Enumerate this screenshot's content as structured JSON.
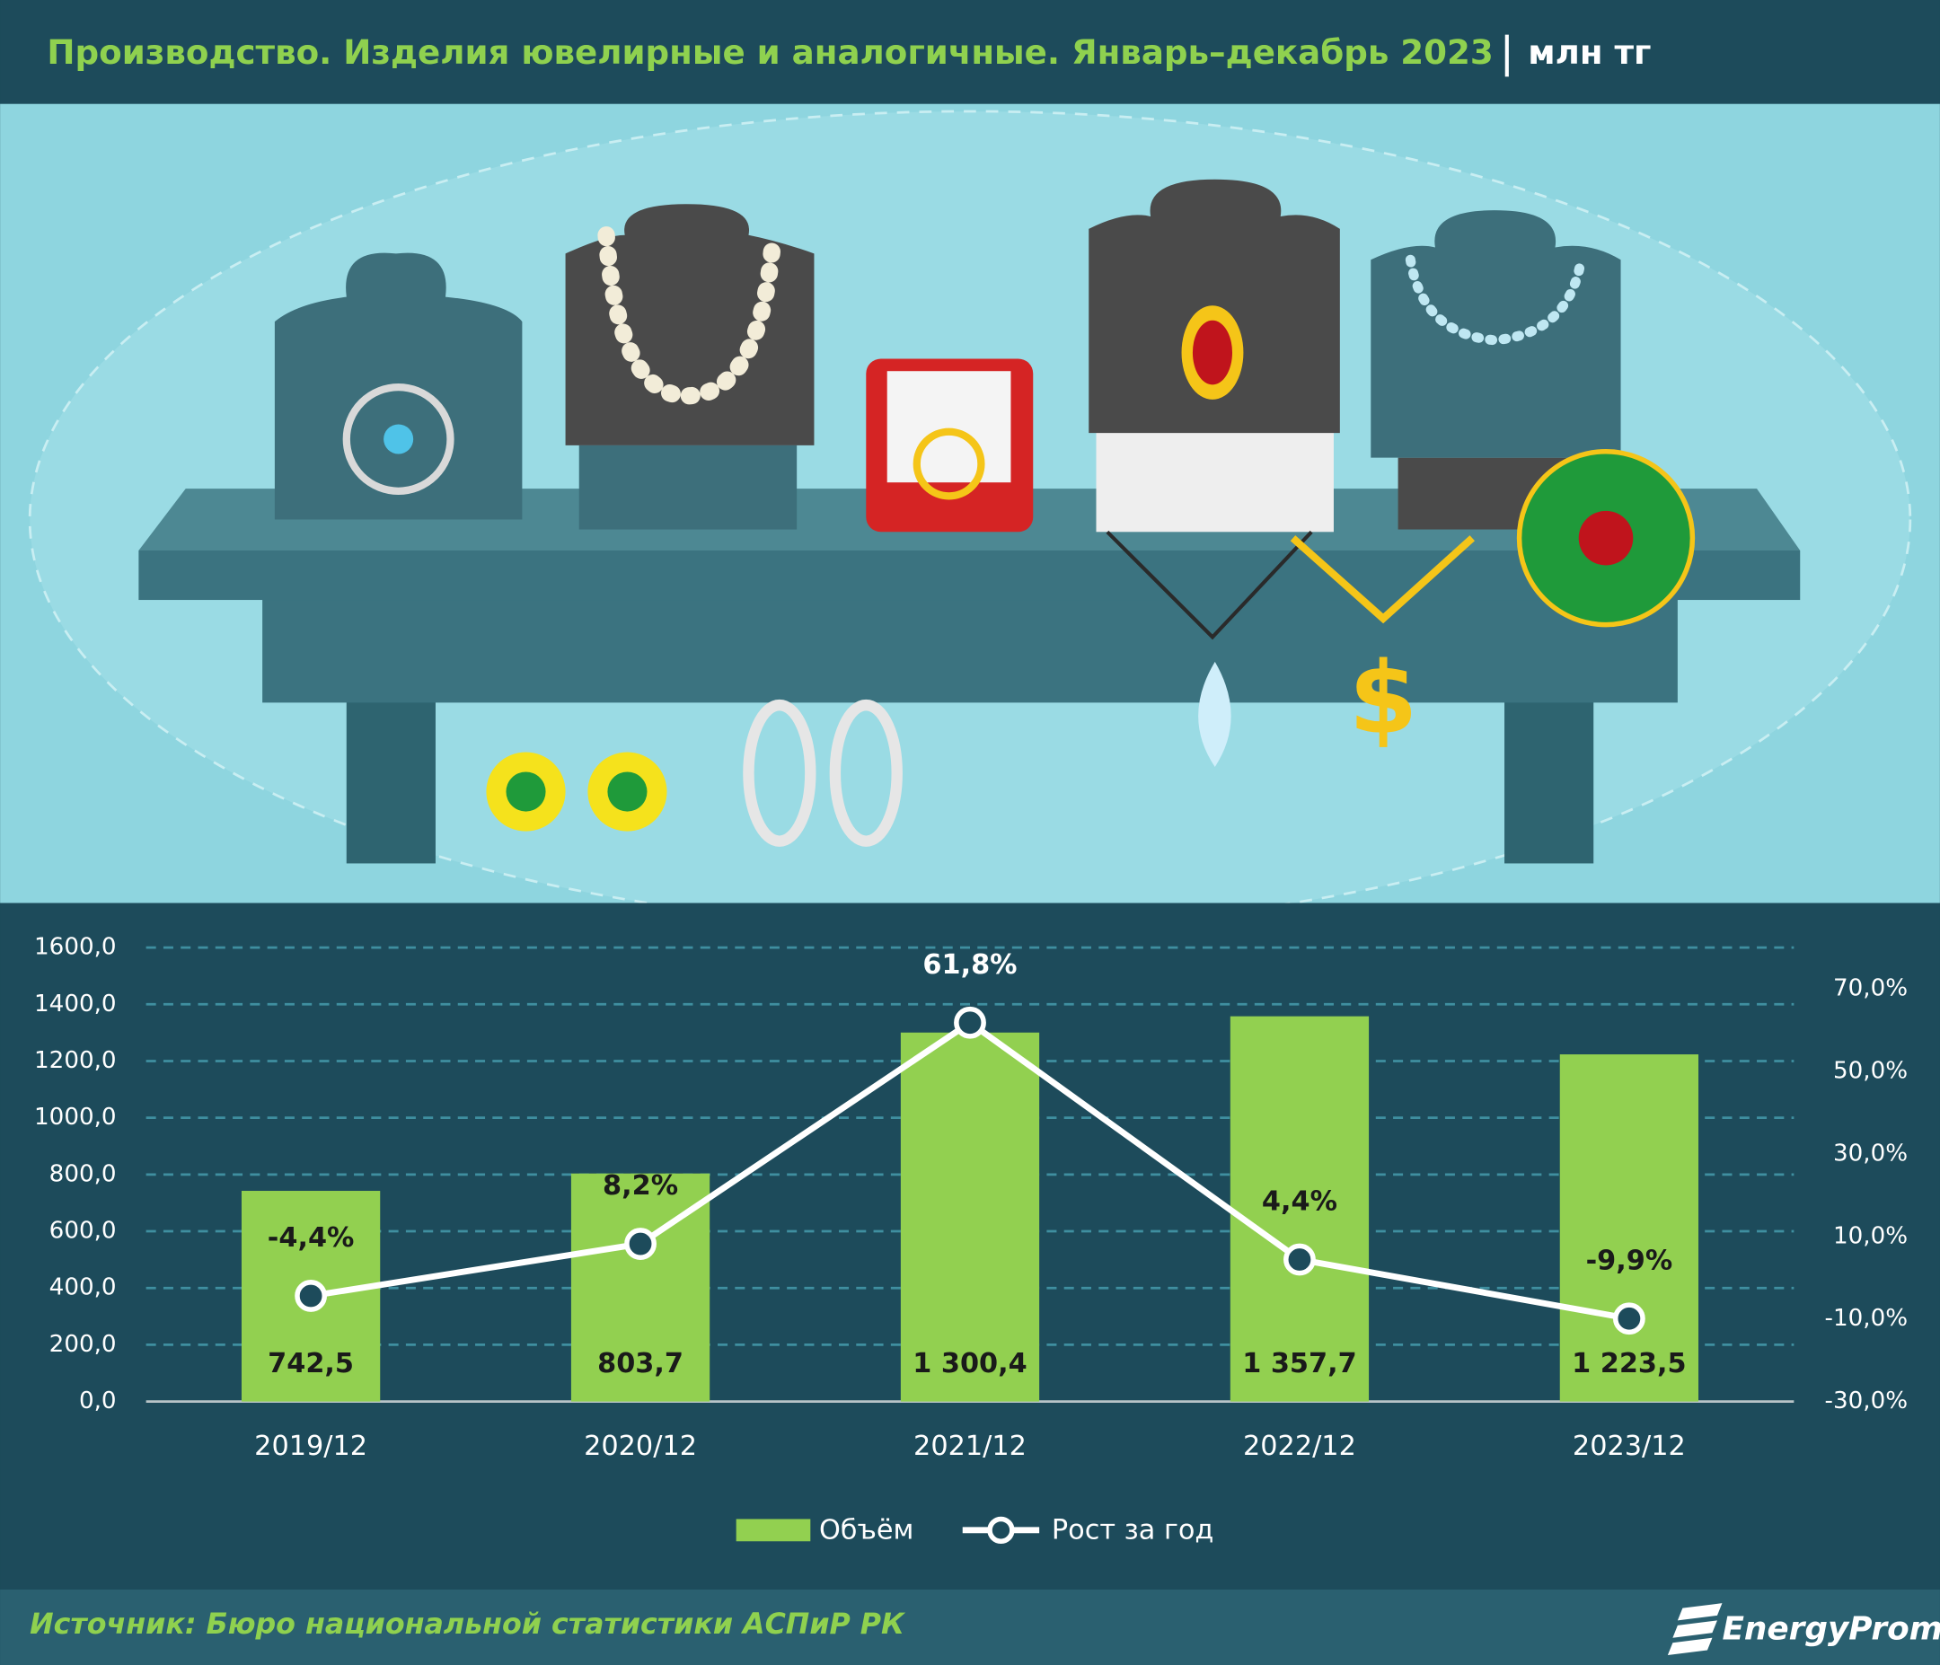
{
  "chart_data": {
    "type": "bar",
    "title": "Производство. Изделия ювелирные и аналогичные. Январь–декабрь 2023",
    "unit": "млн тг",
    "categories": [
      "2019/12",
      "2020/12",
      "2021/12",
      "2022/12",
      "2023/12"
    ],
    "series": [
      {
        "name": "Объём",
        "color": "#92d050",
        "values": [
          742.5,
          803.7,
          1300.4,
          1357.7,
          1223.5
        ],
        "value_labels": [
          "742,5",
          "803,7",
          "1 300,4",
          "1 357,7",
          "1 223,5"
        ]
      },
      {
        "name": "Рост за год",
        "type": "line",
        "axis": "y2",
        "color": "#ffffff",
        "values": [
          -4.4,
          8.2,
          61.8,
          4.4,
          -9.9
        ],
        "value_labels": [
          "-4,4%",
          "8,2%",
          "61,8%",
          "4,4%",
          "-9,9%"
        ]
      }
    ],
    "ylim": [
      0,
      1600
    ],
    "yticks": [
      {
        "value": 0,
        "label": "0,0"
      },
      {
        "value": 200,
        "label": "200,0"
      },
      {
        "value": 400,
        "label": "400,0"
      },
      {
        "value": 600,
        "label": "600,0"
      },
      {
        "value": 800,
        "label": "800,0"
      },
      {
        "value": 1000,
        "label": "1000,0"
      },
      {
        "value": 1200,
        "label": "1200,0"
      },
      {
        "value": 1400,
        "label": "1400,0"
      },
      {
        "value": 1600,
        "label": "1600,0"
      }
    ],
    "y2lim": [
      -30,
      80
    ],
    "y2ticks": [
      {
        "value": -30,
        "label": "-30,0%"
      },
      {
        "value": -10,
        "label": "-10,0%"
      },
      {
        "value": 10,
        "label": "10,0%"
      },
      {
        "value": 30,
        "label": "30,0%"
      },
      {
        "value": 50,
        "label": "50,0%"
      },
      {
        "value": 70,
        "label": "70,0%"
      }
    ],
    "grid": true,
    "legend": "bottom"
  },
  "footer": {
    "source": "Источник: Бюро национальной статистики АСПиР РК",
    "logo": "EnergyProm"
  }
}
